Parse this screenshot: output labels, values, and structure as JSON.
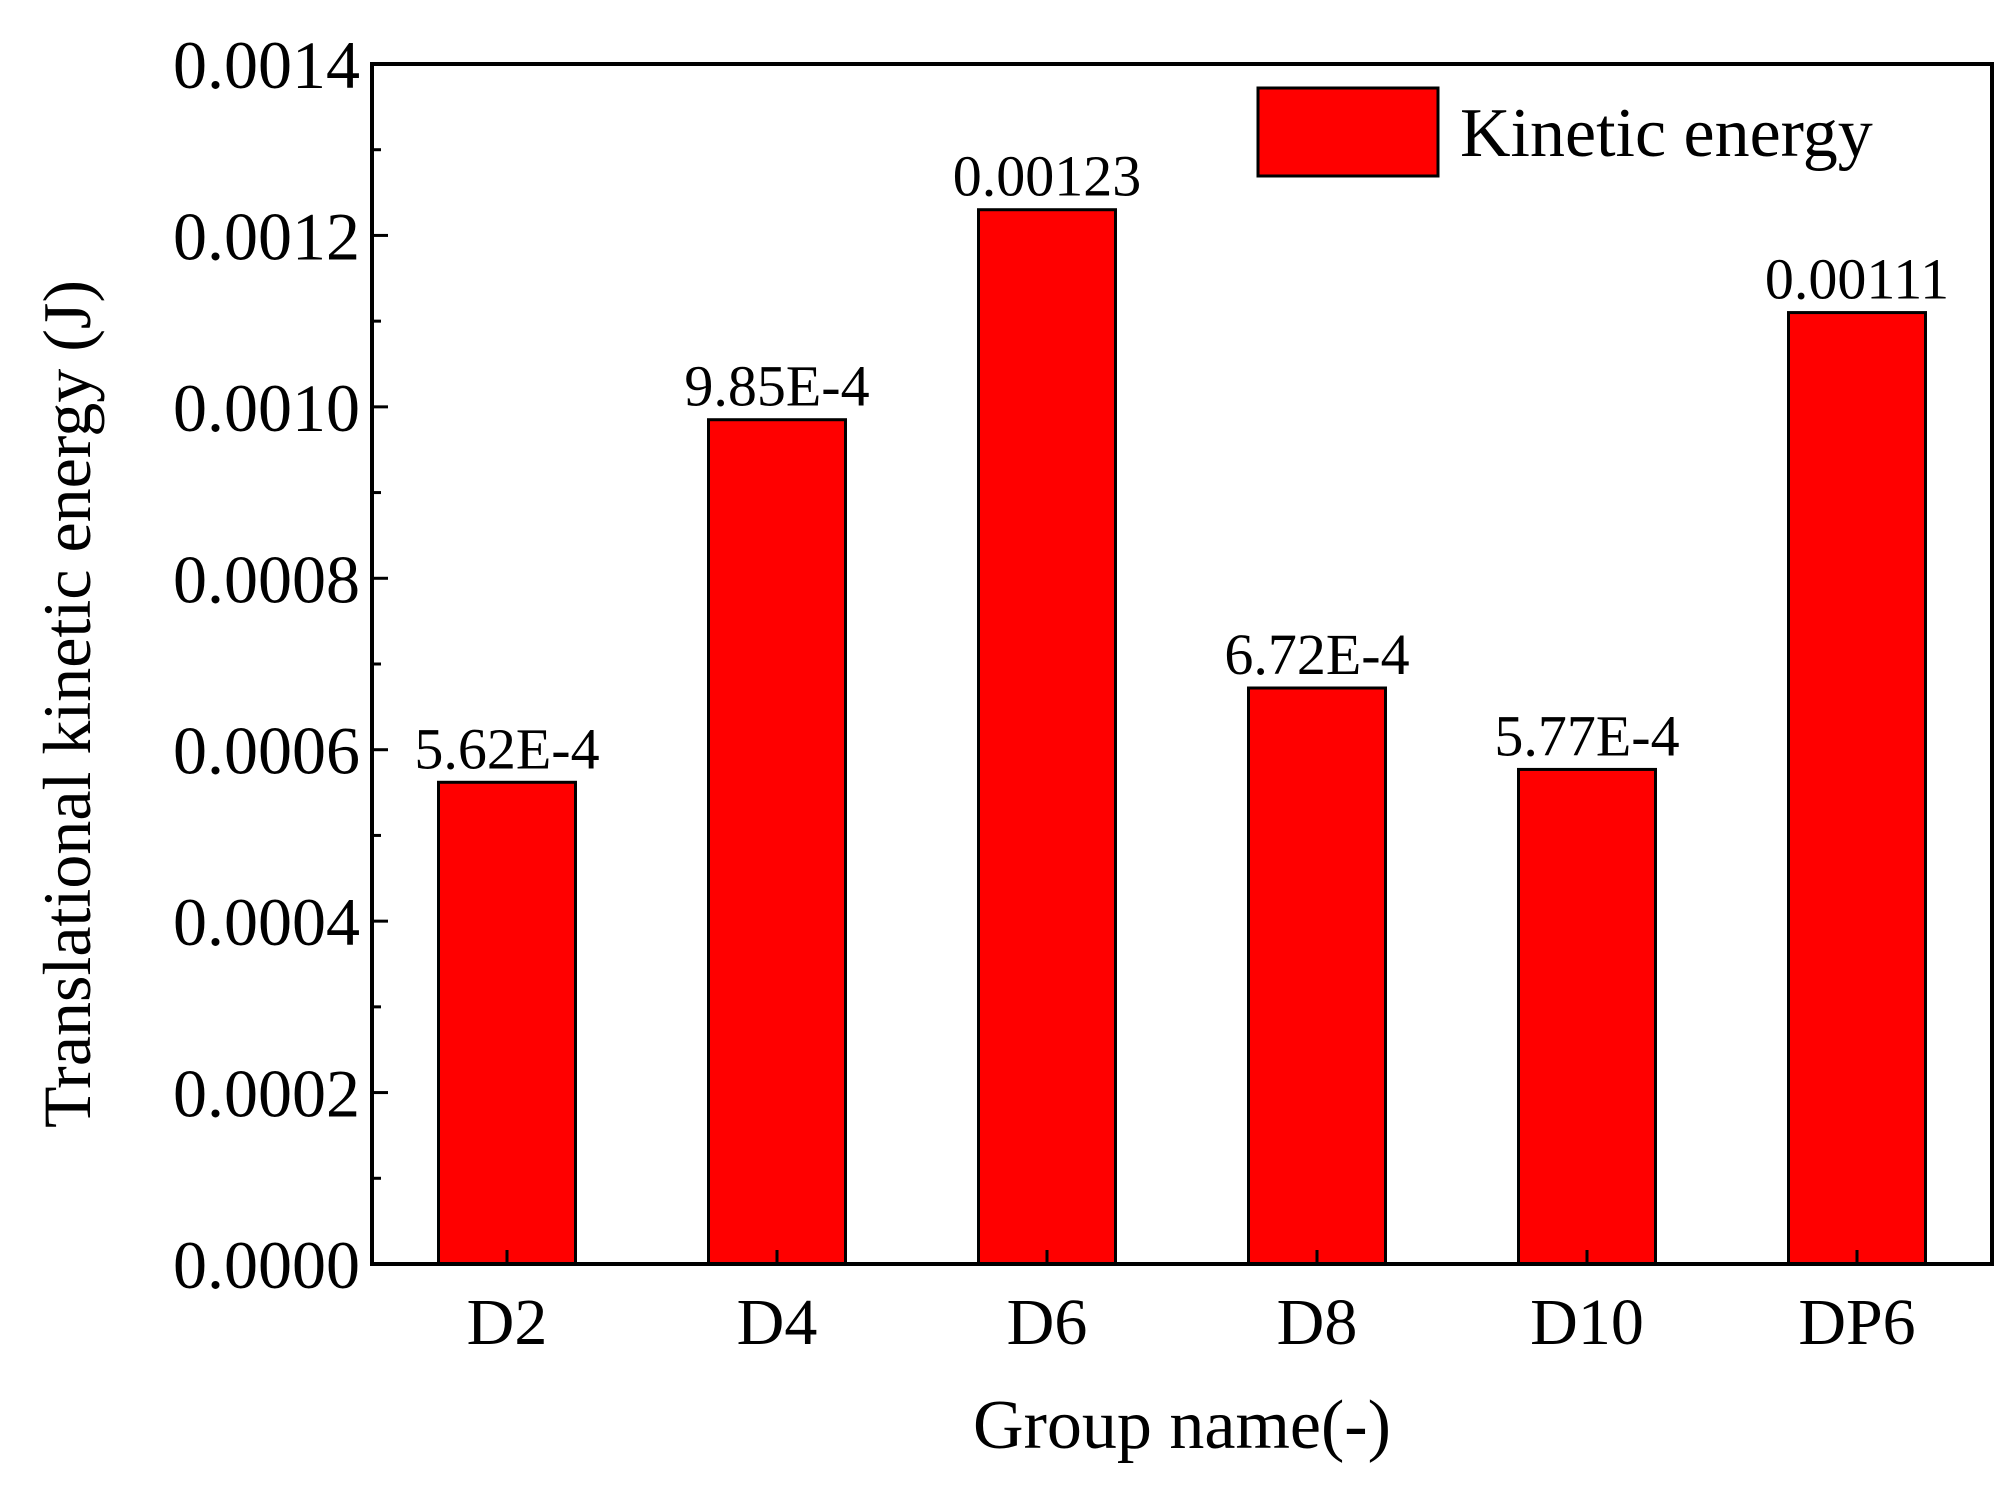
{
  "chart_data": {
    "type": "bar",
    "title": "",
    "xlabel": "Group name(-)",
    "ylabel": "Translational kinetic energy (J)",
    "categories": [
      "D2",
      "D4",
      "D6",
      "D8",
      "D10",
      "DP6"
    ],
    "series": [
      {
        "name": "Kinetic energy",
        "values": [
          0.000562,
          0.000985,
          0.00123,
          0.000672,
          0.000577,
          0.00111
        ],
        "labels": [
          "5.62E-4",
          "9.85E-4",
          "0.00123",
          "6.72E-4",
          "5.77E-4",
          "0.00111"
        ],
        "color": "#ff0000"
      }
    ],
    "ylim": [
      0,
      0.0014
    ],
    "yticks": [
      "0.0000",
      "0.0002",
      "0.0004",
      "0.0006",
      "0.0008",
      "0.0010",
      "0.0012",
      "0.0014"
    ],
    "ytick_values": [
      0,
      0.0002,
      0.0004,
      0.0006,
      0.0008,
      0.001,
      0.0012,
      0.0014
    ],
    "grid": false,
    "legend_position": "top-right",
    "bar_outline_color": "#000000"
  }
}
